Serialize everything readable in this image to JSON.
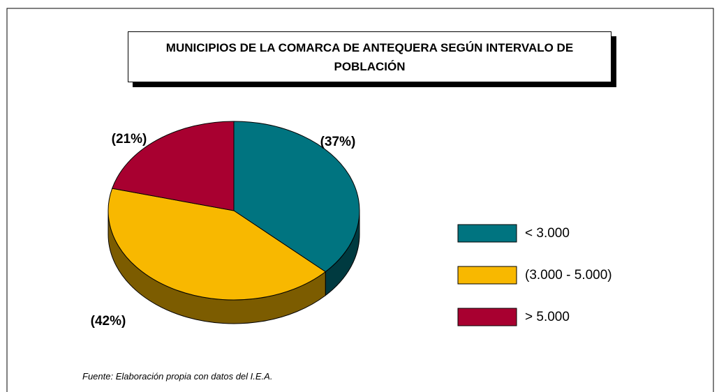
{
  "chart_data": {
    "type": "pie",
    "title": "MUNICIPIOS DE LA COMARCA DE ANTEQUERA SEGÚN INTERVALO DE POBLACIÓN",
    "categories": [
      "< 3.000",
      "(3.000 - 5.000)",
      "> 5.000"
    ],
    "values": [
      37,
      42,
      21
    ],
    "value_labels": [
      "(37%)",
      "(42%)",
      "(21%)"
    ],
    "colors": [
      "#007480",
      "#f8b800",
      "#a80030"
    ],
    "source": "Fuente: Elaboración propia con datos del I.E.A."
  }
}
